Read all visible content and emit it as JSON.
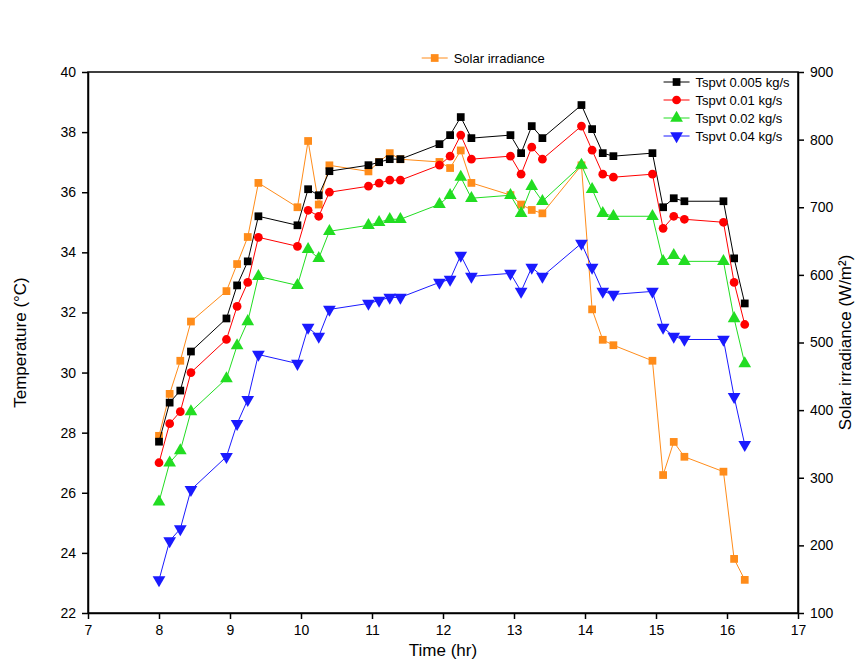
{
  "chart_data": {
    "type": "line",
    "xlabel": "Time (hr)",
    "ylabel": "Temperature (°C)",
    "y2label": "Solar irradiance (W/m²)",
    "x": [
      8.0,
      8.15,
      8.3,
      8.45,
      8.95,
      9.1,
      9.25,
      9.4,
      9.95,
      10.1,
      10.25,
      10.4,
      10.95,
      11.1,
      11.25,
      11.4,
      11.95,
      12.1,
      12.25,
      12.4,
      12.95,
      13.1,
      13.25,
      13.4,
      13.95,
      14.1,
      14.25,
      14.4,
      14.95,
      15.1,
      15.25,
      15.4,
      15.95,
      16.1,
      16.25
    ],
    "xlim": [
      7,
      17
    ],
    "xticks": [
      7,
      8,
      9,
      10,
      11,
      12,
      13,
      14,
      15,
      16,
      17
    ],
    "ylim": [
      22,
      40
    ],
    "yticks": [
      22,
      24,
      26,
      28,
      30,
      32,
      34,
      36,
      38,
      40
    ],
    "y2lim": [
      100,
      900
    ],
    "y2ticks": [
      100,
      200,
      300,
      400,
      500,
      600,
      700,
      800,
      900
    ],
    "grid": false,
    "legend": "upper right",
    "series": [
      {
        "name": "Solar irradiance",
        "color": "#ff8c1a",
        "marker": "square",
        "line_style": "solid",
        "axis": "y2",
        "values": [
          362,
          424,
          473,
          531,
          576,
          616,
          656,
          736,
          700,
          798,
          704,
          762,
          753,
          767,
          780,
          771,
          767,
          758,
          784,
          736,
          718,
          704,
          696,
          691,
          762,
          549,
          504,
          496,
          473,
          304,
          353,
          331,
          309,
          180,
          149
        ]
      },
      {
        "name": "Tspvt 0.005 kg/s",
        "color": "#000000",
        "marker": "square",
        "line_style": "solid",
        "values": [
          27.7,
          29.0,
          29.4,
          30.7,
          31.8,
          32.9,
          33.7,
          35.2,
          34.9,
          36.1,
          35.9,
          36.7,
          36.9,
          37.0,
          37.1,
          37.1,
          37.6,
          37.9,
          38.5,
          37.8,
          37.9,
          37.3,
          38.2,
          37.8,
          38.9,
          38.1,
          37.3,
          37.2,
          37.3,
          35.5,
          35.8,
          35.7,
          35.7,
          33.8,
          32.3
        ]
      },
      {
        "name": "Tspvt 0.01 kg/s",
        "color": "#ff0000",
        "marker": "circle",
        "line_style": "solid",
        "values": [
          27.0,
          28.3,
          28.7,
          30.0,
          31.1,
          32.2,
          33.0,
          34.5,
          34.2,
          35.4,
          35.2,
          36.0,
          36.2,
          36.3,
          36.4,
          36.4,
          36.9,
          37.2,
          37.9,
          37.1,
          37.2,
          36.6,
          37.5,
          37.1,
          38.2,
          37.4,
          36.6,
          36.5,
          36.6,
          34.8,
          35.2,
          35.1,
          35.0,
          33.0,
          31.6
        ]
      },
      {
        "name": "Tspvt 0.02 kg/s",
        "color": "#22dd22",
        "marker": "triangle-up",
        "line_style": "solid",
        "values": [
          25.7,
          27.0,
          27.4,
          28.7,
          29.8,
          30.9,
          31.7,
          33.2,
          32.9,
          34.1,
          33.8,
          34.7,
          34.9,
          35.0,
          35.1,
          35.1,
          35.6,
          35.9,
          36.5,
          35.8,
          35.9,
          35.3,
          36.2,
          35.7,
          36.9,
          36.1,
          35.3,
          35.2,
          35.2,
          33.7,
          33.9,
          33.7,
          33.7,
          31.8,
          30.3
        ]
      },
      {
        "name": "Tspvt 0.04 kg/s",
        "color": "#1a1aff",
        "marker": "triangle-down",
        "line_style": "solid",
        "values": [
          23.1,
          24.4,
          24.8,
          26.1,
          27.2,
          28.3,
          29.1,
          30.6,
          30.3,
          31.5,
          31.2,
          32.1,
          32.3,
          32.4,
          32.5,
          32.5,
          33.0,
          33.1,
          33.9,
          33.2,
          33.3,
          32.7,
          33.5,
          33.2,
          34.3,
          33.5,
          32.7,
          32.6,
          32.7,
          31.5,
          31.2,
          31.1,
          31.1,
          29.2,
          27.6
        ]
      }
    ]
  }
}
